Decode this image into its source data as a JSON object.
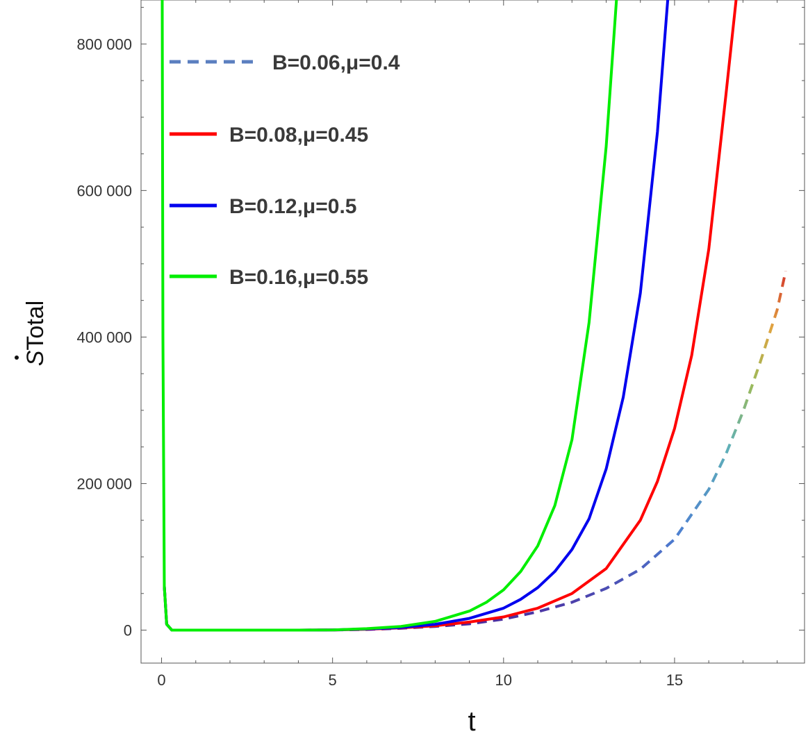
{
  "chart_data": {
    "type": "line",
    "xlabel": "t",
    "ylabel_base": "S",
    "ylabel_sub": "Total",
    "xlim": [
      -0.6,
      18.8
    ],
    "ylim": [
      -45000,
      860000
    ],
    "x_ticks": [
      0,
      5,
      10,
      15
    ],
    "x_tick_labels": [
      "0",
      "5",
      "10",
      "15"
    ],
    "y_ticks": [
      0,
      200000,
      400000,
      600000,
      800000
    ],
    "y_tick_labels": [
      "0",
      "200 000",
      "400 000",
      "600 000",
      "800 000"
    ],
    "legend_position": "top-left",
    "series": [
      {
        "name": "B=0.06,μ=0.4",
        "style": "dashed-gradient",
        "color": "#5b7fc0",
        "x": [
          0.08,
          0.15,
          0.3,
          1,
          2,
          3,
          4,
          5,
          6,
          7,
          8,
          9,
          10,
          11,
          12,
          13,
          14,
          15,
          16,
          16.5,
          17,
          17.5,
          18,
          18.25
        ],
        "y": [
          60000,
          8000,
          0,
          0,
          0,
          0,
          0,
          200,
          900,
          2500,
          5000,
          8500,
          15000,
          25000,
          38000,
          57000,
          83000,
          124000,
          192000,
          240000,
          298000,
          365000,
          437000,
          490000
        ]
      },
      {
        "name": "B=0.08,μ=0.45",
        "style": "solid",
        "color": "#ff0000",
        "x": [
          0.08,
          0.15,
          0.3,
          1,
          2,
          3,
          4,
          5,
          6,
          7,
          8,
          9,
          10,
          11,
          12,
          13,
          14,
          14.5,
          15,
          15.5,
          16,
          16.5,
          16.8
        ],
        "y": [
          60000,
          8000,
          0,
          0,
          0,
          0,
          0,
          300,
          1200,
          3000,
          6000,
          11000,
          18000,
          30000,
          50000,
          84000,
          150000,
          203000,
          275000,
          375000,
          520000,
          730000,
          860000
        ]
      },
      {
        "name": "B=0.12,μ=0.5",
        "style": "solid",
        "color": "#0000ee",
        "x": [
          0.08,
          0.15,
          0.3,
          1,
          2,
          3,
          4,
          5,
          6,
          7,
          8,
          9,
          10,
          10.5,
          11,
          11.5,
          12,
          12.5,
          13,
          13.5,
          14,
          14.5,
          14.8
        ],
        "y": [
          60000,
          8000,
          0,
          0,
          0,
          0,
          0,
          300,
          1500,
          3500,
          8000,
          16000,
          30000,
          42000,
          58000,
          80000,
          110000,
          152000,
          220000,
          318000,
          460000,
          680000,
          860000
        ]
      },
      {
        "name": "B=0.16,μ=0.55",
        "style": "solid",
        "color": "#00ee00",
        "x": [
          0.02,
          0.04,
          0.08,
          0.15,
          0.3,
          1,
          2,
          3,
          4,
          5,
          6,
          7,
          8,
          9,
          9.5,
          10,
          10.5,
          11,
          11.5,
          12,
          12.5,
          13,
          13.3
        ],
        "y": [
          860000,
          400000,
          60000,
          8000,
          0,
          0,
          0,
          0,
          0,
          300,
          2000,
          5000,
          12000,
          26000,
          38000,
          55000,
          80000,
          115000,
          170000,
          260000,
          420000,
          660000,
          860000
        ]
      }
    ]
  }
}
